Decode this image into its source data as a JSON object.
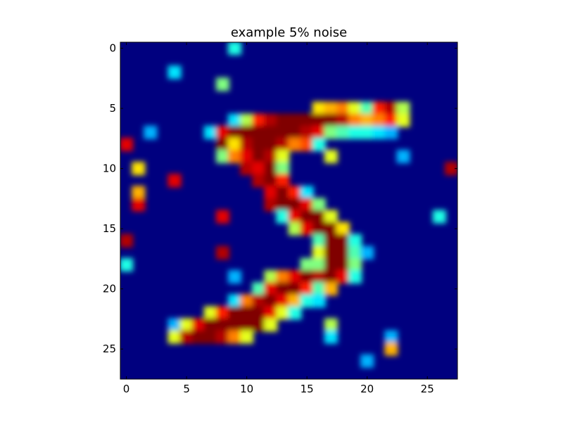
{
  "chart_data": {
    "type": "heatmap",
    "title": "example 5% noise",
    "xlabel": "",
    "ylabel": "",
    "colormap": "jet",
    "rows": 28,
    "cols": 28,
    "xlim": [
      -0.5,
      27.5
    ],
    "ylim": [
      27.5,
      -0.5
    ],
    "x_ticks": [
      0,
      5,
      10,
      15,
      20,
      25
    ],
    "y_ticks": [
      0,
      5,
      10,
      15,
      20,
      25
    ],
    "x_tick_labels": [
      "0",
      "5",
      "10",
      "15",
      "20",
      "25"
    ],
    "y_tick_labels": [
      "0",
      "5",
      "10",
      "15",
      "20",
      "25"
    ],
    "background_value": 0.0,
    "nonzero_cells": [
      [
        0,
        9,
        0.4
      ],
      [
        2,
        4,
        0.35
      ],
      [
        3,
        8,
        0.5
      ],
      [
        5,
        16,
        0.65
      ],
      [
        5,
        17,
        0.7
      ],
      [
        5,
        18,
        0.75
      ],
      [
        5,
        19,
        0.6
      ],
      [
        5,
        20,
        0.45
      ],
      [
        5,
        21,
        0.85
      ],
      [
        5,
        22,
        0.95
      ],
      [
        5,
        23,
        0.55
      ],
      [
        6,
        9,
        0.35
      ],
      [
        6,
        10,
        0.55
      ],
      [
        6,
        11,
        0.85
      ],
      [
        6,
        12,
        0.95
      ],
      [
        6,
        13,
        1.0
      ],
      [
        6,
        14,
        1.0
      ],
      [
        6,
        15,
        1.0
      ],
      [
        6,
        16,
        1.0
      ],
      [
        6,
        17,
        1.0
      ],
      [
        6,
        18,
        0.95
      ],
      [
        6,
        19,
        0.75
      ],
      [
        6,
        20,
        0.7
      ],
      [
        6,
        21,
        0.75
      ],
      [
        6,
        22,
        0.85
      ],
      [
        6,
        23,
        0.6
      ],
      [
        7,
        2,
        0.3
      ],
      [
        7,
        7,
        0.35
      ],
      [
        7,
        8,
        0.9
      ],
      [
        7,
        9,
        1.0
      ],
      [
        7,
        10,
        1.0
      ],
      [
        7,
        11,
        1.0
      ],
      [
        7,
        12,
        1.0
      ],
      [
        7,
        13,
        1.0
      ],
      [
        7,
        14,
        1.0
      ],
      [
        7,
        15,
        0.95
      ],
      [
        7,
        16,
        0.9
      ],
      [
        7,
        17,
        0.5
      ],
      [
        7,
        18,
        0.45
      ],
      [
        7,
        19,
        0.4
      ],
      [
        7,
        20,
        0.4
      ],
      [
        7,
        21,
        0.35
      ],
      [
        7,
        22,
        0.3
      ],
      [
        8,
        0,
        0.9
      ],
      [
        8,
        8,
        1.0
      ],
      [
        8,
        9,
        0.65
      ],
      [
        8,
        10,
        0.95
      ],
      [
        8,
        11,
        1.0
      ],
      [
        8,
        12,
        1.0
      ],
      [
        8,
        13,
        0.95
      ],
      [
        8,
        14,
        0.75
      ],
      [
        8,
        15,
        0.8
      ],
      [
        8,
        16,
        0.4
      ],
      [
        9,
        8,
        0.5
      ],
      [
        9,
        9,
        0.75
      ],
      [
        9,
        10,
        0.9
      ],
      [
        9,
        11,
        1.0
      ],
      [
        9,
        12,
        0.95
      ],
      [
        9,
        13,
        0.6
      ],
      [
        9,
        17,
        0.6
      ],
      [
        9,
        23,
        0.3
      ],
      [
        10,
        1,
        0.65
      ],
      [
        10,
        10,
        0.95
      ],
      [
        10,
        11,
        0.9
      ],
      [
        10,
        12,
        1.0
      ],
      [
        10,
        13,
        0.5
      ],
      [
        10,
        27,
        0.95
      ],
      [
        11,
        4,
        0.9
      ],
      [
        11,
        11,
        0.95
      ],
      [
        11,
        12,
        1.0
      ],
      [
        11,
        13,
        0.85
      ],
      [
        12,
        1,
        0.7
      ],
      [
        12,
        12,
        0.9
      ],
      [
        12,
        13,
        1.0
      ],
      [
        12,
        14,
        0.85
      ],
      [
        12,
        15,
        0.35
      ],
      [
        13,
        1,
        0.9
      ],
      [
        13,
        12,
        0.95
      ],
      [
        13,
        13,
        1.0
      ],
      [
        13,
        14,
        1.0
      ],
      [
        13,
        15,
        0.9
      ],
      [
        13,
        16,
        0.5
      ],
      [
        14,
        8,
        0.9
      ],
      [
        14,
        13,
        0.4
      ],
      [
        14,
        14,
        0.9
      ],
      [
        14,
        15,
        1.0
      ],
      [
        14,
        16,
        1.0
      ],
      [
        14,
        17,
        0.6
      ],
      [
        14,
        26,
        0.4
      ],
      [
        15,
        14,
        0.55
      ],
      [
        15,
        15,
        0.9
      ],
      [
        15,
        16,
        1.0
      ],
      [
        15,
        17,
        1.0
      ],
      [
        15,
        18,
        0.65
      ],
      [
        16,
        0,
        0.95
      ],
      [
        16,
        16,
        0.45
      ],
      [
        16,
        17,
        1.0
      ],
      [
        16,
        18,
        1.0
      ],
      [
        16,
        19,
        0.4
      ],
      [
        17,
        8,
        0.95
      ],
      [
        17,
        16,
        0.6
      ],
      [
        17,
        17,
        1.0
      ],
      [
        17,
        18,
        1.0
      ],
      [
        17,
        19,
        0.45
      ],
      [
        17,
        20,
        0.3
      ],
      [
        18,
        0,
        0.4
      ],
      [
        18,
        15,
        0.5
      ],
      [
        18,
        16,
        0.5
      ],
      [
        18,
        17,
        1.0
      ],
      [
        18,
        18,
        1.0
      ],
      [
        18,
        19,
        0.5
      ],
      [
        19,
        9,
        0.3
      ],
      [
        19,
        12,
        0.55
      ],
      [
        19,
        13,
        0.75
      ],
      [
        19,
        14,
        0.9
      ],
      [
        19,
        15,
        1.0
      ],
      [
        19,
        16,
        0.95
      ],
      [
        19,
        17,
        1.0
      ],
      [
        19,
        18,
        0.9
      ],
      [
        19,
        19,
        0.4
      ],
      [
        20,
        11,
        0.45
      ],
      [
        20,
        12,
        0.9
      ],
      [
        20,
        13,
        1.0
      ],
      [
        20,
        14,
        1.0
      ],
      [
        20,
        15,
        0.85
      ],
      [
        20,
        16,
        0.45
      ],
      [
        20,
        17,
        0.7
      ],
      [
        21,
        9,
        0.35
      ],
      [
        21,
        10,
        0.75
      ],
      [
        21,
        11,
        0.95
      ],
      [
        21,
        12,
        1.0
      ],
      [
        21,
        13,
        0.9
      ],
      [
        21,
        14,
        0.7
      ],
      [
        21,
        15,
        0.4
      ],
      [
        21,
        16,
        0.35
      ],
      [
        22,
        7,
        0.6
      ],
      [
        22,
        8,
        0.85
      ],
      [
        22,
        9,
        1.0
      ],
      [
        22,
        10,
        1.0
      ],
      [
        22,
        11,
        1.0
      ],
      [
        22,
        12,
        0.9
      ],
      [
        22,
        13,
        0.6
      ],
      [
        22,
        14,
        0.4
      ],
      [
        23,
        4,
        0.3
      ],
      [
        23,
        5,
        0.6
      ],
      [
        23,
        6,
        0.9
      ],
      [
        23,
        7,
        1.0
      ],
      [
        23,
        8,
        1.0
      ],
      [
        23,
        9,
        1.0
      ],
      [
        23,
        10,
        1.0
      ],
      [
        23,
        11,
        1.0
      ],
      [
        23,
        12,
        0.6
      ],
      [
        23,
        17,
        0.55
      ],
      [
        24,
        4,
        0.6
      ],
      [
        24,
        5,
        0.95
      ],
      [
        24,
        6,
        1.0
      ],
      [
        24,
        7,
        1.0
      ],
      [
        24,
        8,
        0.95
      ],
      [
        24,
        9,
        0.75
      ],
      [
        24,
        10,
        0.6
      ],
      [
        24,
        17,
        0.35
      ],
      [
        24,
        22,
        0.3
      ],
      [
        25,
        22,
        0.7
      ],
      [
        26,
        20,
        0.3
      ]
    ]
  }
}
